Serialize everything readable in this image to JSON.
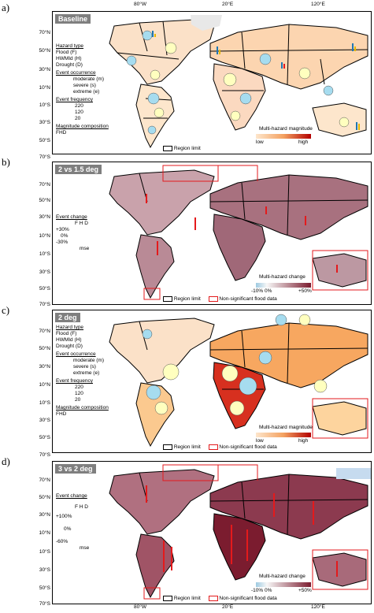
{
  "longitude_labels": [
    "80°W",
    "20°E",
    "120°E"
  ],
  "latitude_labels": [
    "70°N",
    "50°N",
    "30°N",
    "10°N",
    "10°S",
    "30°S",
    "50°S",
    "70°S"
  ],
  "colors": {
    "land": "#d9d9d9",
    "flood": "#1f77b4",
    "hvmild": "#e41a1c",
    "drought": "#e6b800",
    "moderate": "#a6dcef",
    "severe": "#ffffbf",
    "extreme": "#ffffff",
    "magnitude_low": "#fde6cc",
    "magnitude_high": "#b30000",
    "change_low": "#9ecae1",
    "change_high": "#7b1c2f",
    "nonsig": "#e31a1c"
  },
  "panels": [
    {
      "letter": "a)",
      "title": "Baseline",
      "legend": {
        "hazard_type": "Hazard type",
        "flood": "Flood (F)",
        "hvmild": "HWMId (H)",
        "drought": "Drought (D)",
        "event_occurrence": "Event occurrence",
        "moderate": "moderate (m)",
        "severe": "severe (s)",
        "extreme": "extreme (e)",
        "event_frequency": "Event frequency",
        "freq_values": [
          "220",
          "120",
          "20"
        ],
        "magnitude_composition": "Magnitude composition",
        "fhd": "FHD",
        "pie_letters": [
          "F",
          "D",
          "H"
        ]
      },
      "colorbar": {
        "title": "Multi-hazard magnitude",
        "low": "low",
        "high": "high"
      },
      "region_limit": "Region limit"
    },
    {
      "letter": "b)",
      "title": "2 vs 1.5 deg",
      "legend": {
        "event_change": "Event change",
        "fhd": "F H D",
        "ticks": [
          "+30%",
          "0%",
          "-30%"
        ],
        "mse": "mse"
      },
      "colorbar": {
        "title": "Multi-hazard change",
        "low": "-10% 0%",
        "high": "+50%"
      },
      "region_limit": "Region limit",
      "nonsig": "Non-significant flood data"
    },
    {
      "letter": "c)",
      "title": "2 deg",
      "legend": {
        "hazard_type": "Hazard type",
        "flood": "Flood (F)",
        "hvmild": "HWMId (H)",
        "drought": "Drought (D)",
        "event_occurrence": "Event occurrence",
        "moderate": "moderate (m)",
        "severe": "severe (s)",
        "extreme": "extreme (e)",
        "event_frequency": "Event frequency",
        "freq_values": [
          "220",
          "120",
          "20"
        ],
        "magnitude_composition": "Magnitude composition",
        "fhd": "FHD",
        "pie_letters": [
          "F",
          "D",
          "H"
        ]
      },
      "colorbar": {
        "title": "Multi-hazard magnitude",
        "low": "low",
        "high": "high"
      },
      "region_limit": "Region limit",
      "nonsig": "Non-significant flood data"
    },
    {
      "letter": "d)",
      "title": "3 vs 2 deg",
      "legend": {
        "event_change": "Event change",
        "fhd": "F H D",
        "ticks": [
          "+100%",
          "0%",
          "-60%"
        ],
        "mse": "mse"
      },
      "colorbar": {
        "title": "Multi-hazard change",
        "low": "-10% 0%",
        "high": "+50%"
      },
      "region_limit": "Region limit",
      "nonsig": "Non-significant flood data"
    }
  ]
}
